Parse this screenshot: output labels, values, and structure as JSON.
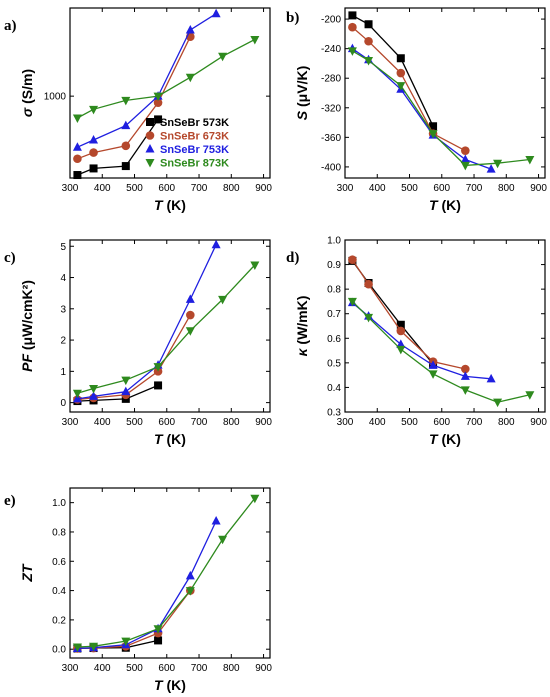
{
  "chart_data": [
    {
      "panel": "a)",
      "type": "line",
      "ylabel_sym": "σ",
      "ylabel_unit": " (S/m)",
      "xlabel_sym": "T",
      "xlabel_unit": " (K)",
      "yscale": "log",
      "xlim": [
        300,
        920
      ],
      "ylim": [
        130,
        9000
      ],
      "xticks": [
        300,
        400,
        500,
        600,
        700,
        800,
        900
      ],
      "yticks": [
        1000
      ],
      "ytick_labels": [
        "1000"
      ],
      "legend": {
        "placement": "center-right"
      },
      "series": [
        {
          "name": "SnSeBr 573K",
          "color": "#000000",
          "marker": "square",
          "x": [
            323,
            373,
            473,
            573
          ],
          "y": [
            140,
            165,
            175,
            560
          ]
        },
        {
          "name": "SnSeBr 673K",
          "color": "#b5482c",
          "marker": "circle",
          "x": [
            323,
            373,
            473,
            573,
            673
          ],
          "y": [
            210,
            245,
            290,
            850,
            4400
          ]
        },
        {
          "name": "SnSeBr 753K",
          "color": "#1f1fe0",
          "marker": "triangle-up",
          "x": [
            323,
            373,
            473,
            573,
            673,
            753
          ],
          "y": [
            280,
            335,
            480,
            1000,
            5200,
            7800
          ]
        },
        {
          "name": "SnSeBr 873K",
          "color": "#2e8a1e",
          "marker": "triangle-down",
          "x": [
            323,
            373,
            473,
            573,
            673,
            773,
            873
          ],
          "y": [
            580,
            720,
            900,
            1000,
            1600,
            2700,
            4100
          ]
        }
      ]
    },
    {
      "panel": "b)",
      "type": "line",
      "ylabel_sym": "S",
      "ylabel_unit": " (μV/K)",
      "xlabel_sym": "T",
      "xlabel_unit": " (K)",
      "xlim": [
        300,
        920
      ],
      "ylim": [
        -415,
        -185
      ],
      "xticks": [
        300,
        400,
        500,
        600,
        700,
        800,
        900
      ],
      "yticks": [
        -200,
        -240,
        -280,
        -320,
        -360,
        -400
      ],
      "series": [
        {
          "name": "SnSeBr 573K",
          "color": "#000000",
          "marker": "square",
          "x": [
            323,
            373,
            473,
            573
          ],
          "y": [
            -195,
            -207,
            -253,
            -345
          ]
        },
        {
          "name": "SnSeBr 673K",
          "color": "#b5482c",
          "marker": "circle",
          "x": [
            323,
            373,
            473,
            573,
            673
          ],
          "y": [
            -211,
            -230,
            -273,
            -355,
            -378
          ]
        },
        {
          "name": "SnSeBr 753K",
          "color": "#1f1fe0",
          "marker": "triangle-up",
          "x": [
            323,
            373,
            473,
            573,
            673,
            753
          ],
          "y": [
            -240,
            -255,
            -295,
            -357,
            -390,
            -403
          ]
        },
        {
          "name": "SnSeBr 873K",
          "color": "#2e8a1e",
          "marker": "triangle-down",
          "x": [
            323,
            373,
            473,
            573,
            673,
            773,
            873
          ],
          "y": [
            -243,
            -256,
            -290,
            -355,
            -398,
            -395,
            -390
          ]
        }
      ]
    },
    {
      "panel": "c)",
      "type": "line",
      "ylabel_sym": "PF",
      "ylabel_unit": " (μW/cmK²)",
      "xlabel_sym": "T",
      "xlabel_unit": " (K)",
      "xlim": [
        300,
        920
      ],
      "ylim": [
        -0.3,
        5.2
      ],
      "xticks": [
        300,
        400,
        500,
        600,
        700,
        800,
        900
      ],
      "yticks": [
        0,
        1,
        2,
        3,
        4,
        5
      ],
      "series": [
        {
          "name": "SnSeBr 573K",
          "color": "#000000",
          "marker": "square",
          "x": [
            323,
            373,
            473,
            573
          ],
          "y": [
            0.05,
            0.07,
            0.12,
            0.55
          ]
        },
        {
          "name": "SnSeBr 673K",
          "color": "#b5482c",
          "marker": "circle",
          "x": [
            323,
            373,
            473,
            573,
            673
          ],
          "y": [
            0.1,
            0.15,
            0.25,
            1.0,
            2.8
          ]
        },
        {
          "name": "SnSeBr 753K",
          "color": "#1f1fe0",
          "marker": "triangle-up",
          "x": [
            323,
            373,
            473,
            573,
            673,
            753
          ],
          "y": [
            0.12,
            0.2,
            0.35,
            1.2,
            3.3,
            5.05
          ]
        },
        {
          "name": "SnSeBr 873K",
          "color": "#2e8a1e",
          "marker": "triangle-down",
          "x": [
            323,
            373,
            473,
            573,
            673,
            773,
            873
          ],
          "y": [
            0.3,
            0.45,
            0.72,
            1.15,
            2.3,
            3.3,
            4.4
          ]
        }
      ]
    },
    {
      "panel": "d)",
      "type": "line",
      "ylabel_sym": "κ",
      "ylabel_unit": " (W/mK)",
      "xlabel_sym": "T",
      "xlabel_unit": " (K)",
      "xlim": [
        300,
        920
      ],
      "ylim": [
        0.3,
        1.0
      ],
      "xticks": [
        300,
        400,
        500,
        600,
        700,
        800,
        900
      ],
      "yticks": [
        0.3,
        0.4,
        0.5,
        0.6,
        0.7,
        0.8,
        0.9,
        1.0
      ],
      "ytick_labels": [
        "0.3",
        "0.4",
        "0.5",
        "0.6",
        "0.7",
        "0.8",
        "0.9",
        "1.0"
      ],
      "series": [
        {
          "name": "SnSeBr 573K",
          "color": "#000000",
          "marker": "square",
          "x": [
            323,
            373,
            473,
            573
          ],
          "y": [
            0.915,
            0.825,
            0.655,
            0.495
          ]
        },
        {
          "name": "SnSeBr 673K",
          "color": "#b5482c",
          "marker": "circle",
          "x": [
            323,
            373,
            473,
            573,
            673
          ],
          "y": [
            0.92,
            0.82,
            0.63,
            0.505,
            0.475
          ]
        },
        {
          "name": "SnSeBr 753K",
          "color": "#1f1fe0",
          "marker": "triangle-up",
          "x": [
            323,
            373,
            473,
            573,
            673,
            753
          ],
          "y": [
            0.745,
            0.69,
            0.575,
            0.49,
            0.445,
            0.435
          ]
        },
        {
          "name": "SnSeBr 873K",
          "color": "#2e8a1e",
          "marker": "triangle-down",
          "x": [
            323,
            373,
            473,
            573,
            673,
            773,
            873
          ],
          "y": [
            0.75,
            0.685,
            0.555,
            0.455,
            0.39,
            0.34,
            0.37
          ]
        }
      ]
    },
    {
      "panel": "e)",
      "type": "line",
      "ylabel_sym": "ZT",
      "ylabel_unit": "",
      "xlabel_sym": "T",
      "xlabel_unit": " (K)",
      "xlim": [
        300,
        920
      ],
      "ylim": [
        -0.06,
        1.1
      ],
      "xticks": [
        300,
        400,
        500,
        600,
        700,
        800,
        900
      ],
      "yticks": [
        0.0,
        0.2,
        0.4,
        0.6,
        0.8,
        1.0
      ],
      "ytick_labels": [
        "0.0",
        "0.2",
        "0.4",
        "0.6",
        "0.8",
        "1.0"
      ],
      "series": [
        {
          "name": "SnSeBr 573K",
          "color": "#000000",
          "marker": "square",
          "x": [
            323,
            373,
            473,
            573
          ],
          "y": [
            0.005,
            0.008,
            0.01,
            0.06
          ]
        },
        {
          "name": "SnSeBr 673K",
          "color": "#b5482c",
          "marker": "circle",
          "x": [
            323,
            373,
            473,
            573,
            673
          ],
          "y": [
            0.005,
            0.008,
            0.02,
            0.11,
            0.4
          ]
        },
        {
          "name": "SnSeBr 753K",
          "color": "#1f1fe0",
          "marker": "triangle-up",
          "x": [
            323,
            373,
            473,
            573,
            673,
            753
          ],
          "y": [
            0.005,
            0.01,
            0.03,
            0.14,
            0.5,
            0.875
          ]
        },
        {
          "name": "SnSeBr 873K",
          "color": "#2e8a1e",
          "marker": "triangle-down",
          "x": [
            323,
            373,
            473,
            573,
            673,
            773,
            873
          ],
          "y": [
            0.015,
            0.02,
            0.055,
            0.14,
            0.4,
            0.75,
            1.03
          ]
        }
      ]
    }
  ]
}
